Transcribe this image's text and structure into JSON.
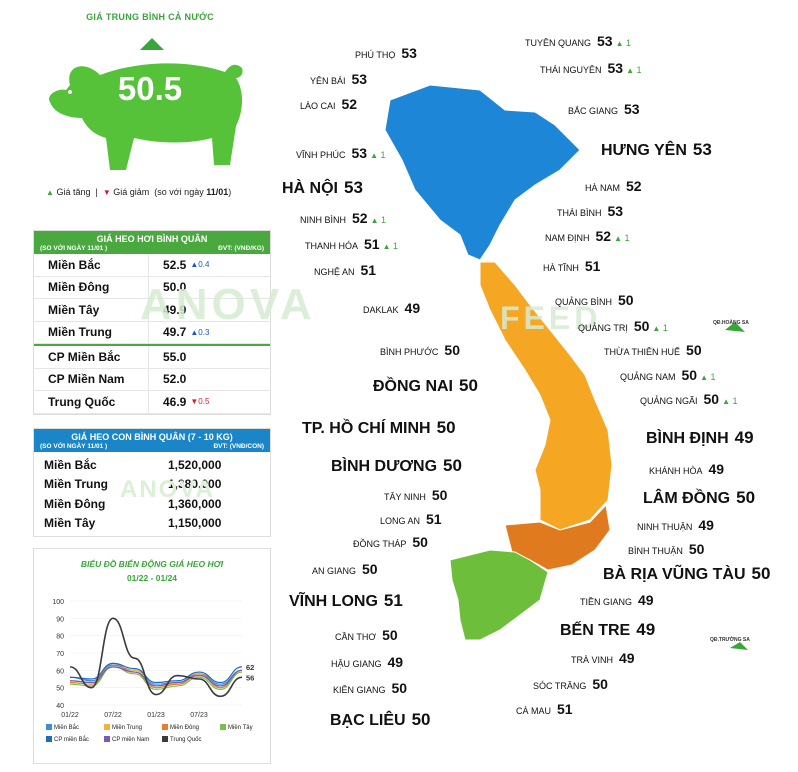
{
  "header": {
    "title": "GIÁ TRUNG BÌNH CẢ NƯỚC",
    "national_price": "50.5",
    "legend_up": "Giá tăng",
    "legend_down": "Giá giảm",
    "legend_note_pre": "(so với ngày ",
    "legend_note_date": "11/01",
    "legend_note_post": ")"
  },
  "colors": {
    "brand_green": "#3aa63a",
    "table_green": "#49a83e",
    "table_blue": "#1a86c8",
    "north_blue": "#1e86d6",
    "central_orange": "#f5a623",
    "south_dark_orange": "#e07a1f",
    "mekong_green": "#6dbf3b"
  },
  "live_pig_table": {
    "title": "GIÁ HEO HƠI BÌNH QUÂN",
    "note": "(SO VỚI NGÀY 11/01 )",
    "unit": "ĐVT: (VNĐ/KG)",
    "rows": [
      {
        "region": "Miền Bắc",
        "price": "52.5",
        "delta": "0.4",
        "dir": "up"
      },
      {
        "region": "Miền Đông",
        "price": "50.0",
        "delta": "",
        "dir": ""
      },
      {
        "region": "Miền Tây",
        "price": "49.9",
        "delta": "",
        "dir": ""
      },
      {
        "region": "Miền Trung",
        "price": "49.7",
        "delta": "0.3",
        "dir": "up"
      },
      {
        "region": "CP Miền Bắc",
        "price": "55.0",
        "delta": "",
        "dir": ""
      },
      {
        "region": "CP Miền Nam",
        "price": "52.0",
        "delta": "",
        "dir": ""
      },
      {
        "region": "Trung Quốc",
        "price": "46.9",
        "delta": "0.5",
        "dir": "down"
      }
    ]
  },
  "piglet_table": {
    "title": "GIÁ HEO CON BÌNH QUÂN (7 - 10 KG)",
    "note": "(SO VỚI NGÀY 11/01 )",
    "unit": "ĐVT: (VNĐ/CON)",
    "rows": [
      {
        "region": "Miền Bắc",
        "price": "1,520,000"
      },
      {
        "region": "Miền Trung",
        "price": "1,380,000"
      },
      {
        "region": "Miền Đông",
        "price": "1,360,000"
      },
      {
        "region": "Miền Tây",
        "price": "1,150,000"
      }
    ]
  },
  "chart_data": {
    "type": "line",
    "title": "BIỂU ĐỒ BIẾN ĐỘNG GIÁ HEO HƠI",
    "subtitle": "01/22 - 01/24",
    "x": [
      "01/22",
      "04/22",
      "07/22",
      "10/22",
      "01/23",
      "04/23",
      "07/23",
      "10/23",
      "01/24"
    ],
    "x_ticks": [
      "01/22",
      "07/22",
      "01/23",
      "07/23"
    ],
    "y_ticks": [
      40,
      50,
      60,
      70,
      80,
      90,
      100
    ],
    "ylim": [
      40,
      100
    ],
    "end_labels": [
      "62",
      "56"
    ],
    "series": [
      {
        "name": "Miền Bắc",
        "color": "#3b8fd9",
        "values": [
          56,
          54,
          63,
          60,
          52,
          53,
          58,
          52,
          60
        ]
      },
      {
        "name": "Miền Trung",
        "color": "#f2b33d",
        "values": [
          54,
          53,
          62,
          60,
          51,
          52,
          57,
          51,
          59
        ]
      },
      {
        "name": "Miền Đông",
        "color": "#e87d2c",
        "values": [
          53,
          52,
          64,
          59,
          50,
          52,
          58,
          50,
          60
        ]
      },
      {
        "name": "Miền Tây",
        "color": "#79c04a",
        "values": [
          52,
          51,
          62,
          58,
          49,
          51,
          56,
          49,
          59
        ]
      },
      {
        "name": "CP miền Bắc",
        "color": "#1a6fb8",
        "values": [
          56,
          55,
          64,
          61,
          53,
          54,
          59,
          53,
          62
        ]
      },
      {
        "name": "CP miền Nam",
        "color": "#7b57c4",
        "values": [
          54,
          53,
          62,
          59,
          51,
          53,
          57,
          51,
          60
        ]
      },
      {
        "name": "Trung Quốc",
        "color": "#3a3a3a",
        "values": [
          62,
          50,
          90,
          67,
          46,
          57,
          55,
          45,
          56
        ]
      }
    ]
  },
  "map": {
    "watermark": "ANOVA",
    "watermark2": "FEED",
    "islands": [
      "QĐ.HOÀNG SA",
      "QĐ.TRƯỜNG SA"
    ],
    "provinces": [
      {
        "name": "TUYÊN QUANG",
        "price": "53",
        "delta": "1"
      },
      {
        "name": "PHÚ THỌ",
        "price": "53"
      },
      {
        "name": "THÁI NGUYÊN",
        "price": "53",
        "delta": "1"
      },
      {
        "name": "YÊN BÁI",
        "price": "53"
      },
      {
        "name": "LÀO CAI",
        "price": "52"
      },
      {
        "name": "BẮC GIANG",
        "price": "53"
      },
      {
        "name": "VĨNH PHÚC",
        "price": "53",
        "delta": "1"
      },
      {
        "name": "HƯNG YÊN",
        "price": "53"
      },
      {
        "name": "HÀ NỘI",
        "price": "53"
      },
      {
        "name": "HÀ NAM",
        "price": "52"
      },
      {
        "name": "THÁI BÌNH",
        "price": "53"
      },
      {
        "name": "NINH BÌNH",
        "price": "52",
        "delta": "1"
      },
      {
        "name": "NAM ĐỊNH",
        "price": "52",
        "delta": "1"
      },
      {
        "name": "THANH HÓA",
        "price": "51",
        "delta": "1"
      },
      {
        "name": "NGHỆ AN",
        "price": "51"
      },
      {
        "name": "HÀ TĨNH",
        "price": "51"
      },
      {
        "name": "DAKLAK",
        "price": "49"
      },
      {
        "name": "QUẢNG BÌNH",
        "price": "50"
      },
      {
        "name": "QUẢNG TRỊ",
        "price": "50",
        "delta": "1"
      },
      {
        "name": "BÌNH PHƯỚC",
        "price": "50"
      },
      {
        "name": "THỪA THIÊN HUẾ",
        "price": "50"
      },
      {
        "name": "ĐỒNG NAI",
        "price": "50"
      },
      {
        "name": "QUẢNG NAM",
        "price": "50",
        "delta": "1"
      },
      {
        "name": "QUẢNG NGÃI",
        "price": "50",
        "delta": "1"
      },
      {
        "name": "TP. HỒ CHÍ MINH",
        "price": "50"
      },
      {
        "name": "BÌNH ĐỊNH",
        "price": "49"
      },
      {
        "name": "BÌNH DƯƠNG",
        "price": "50"
      },
      {
        "name": "KHÁNH HÒA",
        "price": "49"
      },
      {
        "name": "TÂY NINH",
        "price": "50"
      },
      {
        "name": "LÂM ĐỒNG",
        "price": "50"
      },
      {
        "name": "LONG AN",
        "price": "51"
      },
      {
        "name": "NINH THUẬN",
        "price": "49"
      },
      {
        "name": "ĐỒNG THÁP",
        "price": "50"
      },
      {
        "name": "BÌNH THUẬN",
        "price": "50"
      },
      {
        "name": "AN GIANG",
        "price": "50"
      },
      {
        "name": "BÀ RỊA VŨNG TÀU",
        "price": "50"
      },
      {
        "name": "VĨNH LONG",
        "price": "51"
      },
      {
        "name": "TIỀN GIANG",
        "price": "49"
      },
      {
        "name": "CẦN THƠ",
        "price": "50"
      },
      {
        "name": "BẾN TRE",
        "price": "49"
      },
      {
        "name": "HẬU GIANG",
        "price": "49"
      },
      {
        "name": "TRÀ VINH",
        "price": "49"
      },
      {
        "name": "KIÊN GIANG",
        "price": "50"
      },
      {
        "name": "SÓC TRĂNG",
        "price": "50"
      },
      {
        "name": "BẠC LIÊU",
        "price": "50"
      },
      {
        "name": "CÀ MAU",
        "price": "51"
      }
    ]
  }
}
